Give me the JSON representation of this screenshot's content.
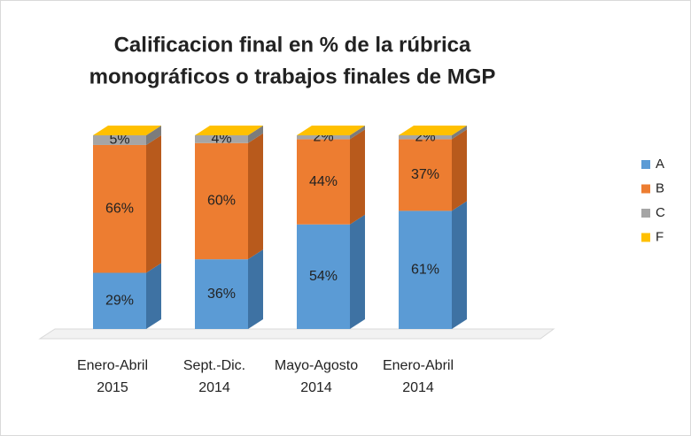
{
  "chart_data": {
    "type": "bar3d_stacked",
    "title": [
      "Calificacion final en % de la rúbrica",
      "monográficos o trabajos finales de MGP"
    ],
    "categories": [
      [
        "Enero-Abril",
        "2015"
      ],
      [
        "Sept.-Dic.",
        "2014"
      ],
      [
        "Mayo-Agosto",
        "2014"
      ],
      [
        "Enero-Abril",
        "2014"
      ]
    ],
    "ylim": [
      0,
      100
    ],
    "legend": "right",
    "series": [
      {
        "name": "A",
        "color": "#5b9bd5",
        "side": "#3e72a3",
        "values": [
          29,
          36,
          54,
          61
        ],
        "value_labels": [
          "29%",
          "36%",
          "54%",
          "61%"
        ]
      },
      {
        "name": "B",
        "color": "#ed7d31",
        "side": "#b85a1c",
        "values": [
          66,
          60,
          44,
          37
        ],
        "value_labels": [
          "66%",
          "60%",
          "44%",
          "37%"
        ]
      },
      {
        "name": "C",
        "color": "#a5a5a5",
        "side": "#7c7c7c",
        "values": [
          5,
          4,
          2,
          2
        ],
        "value_labels": [
          "5%",
          "4%",
          "2%",
          "2%"
        ]
      },
      {
        "name": "F",
        "color": "#ffc000",
        "side": "#c79600",
        "values": [
          0,
          0,
          0,
          0
        ]
      }
    ]
  }
}
